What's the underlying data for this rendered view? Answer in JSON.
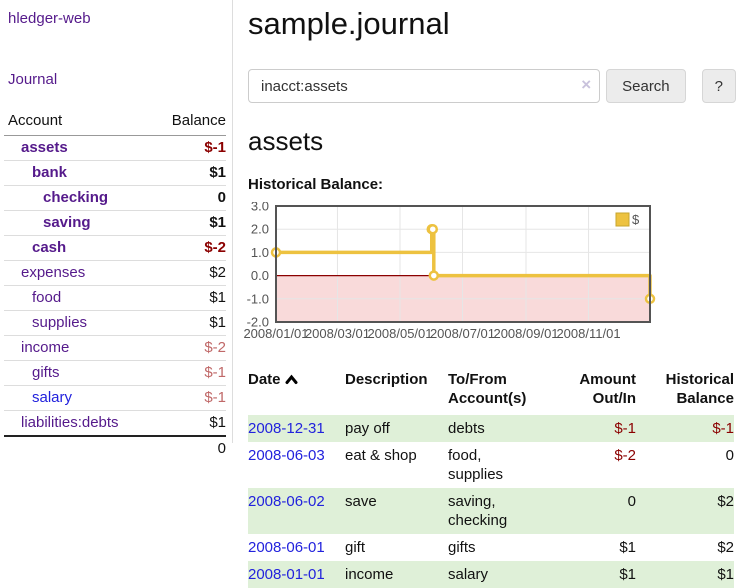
{
  "sidebar": {
    "brand": "hledger-web",
    "journal_link": "Journal",
    "accounts_table": {
      "headers": {
        "account": "Account",
        "balance": "Balance"
      },
      "rows": [
        {
          "name": "assets",
          "balance": "$-1",
          "level": 1,
          "bold": true,
          "blue_link": false
        },
        {
          "name": "bank",
          "balance": "$1",
          "level": 2,
          "bold": true,
          "blue_link": false
        },
        {
          "name": "checking",
          "balance": "0",
          "level": 3,
          "bold": true,
          "blue_link": false
        },
        {
          "name": "saving",
          "balance": "$1",
          "level": 3,
          "bold": true,
          "blue_link": false
        },
        {
          "name": "cash",
          "balance": "$-2",
          "level": 2,
          "bold": true,
          "blue_link": false
        },
        {
          "name": "expenses",
          "balance": "$2",
          "level": 1,
          "bold": false,
          "blue_link": false
        },
        {
          "name": "food",
          "balance": "$1",
          "level": 2,
          "bold": false,
          "blue_link": false
        },
        {
          "name": "supplies",
          "balance": "$1",
          "level": 2,
          "bold": false,
          "blue_link": false
        },
        {
          "name": "income",
          "balance": "$-2",
          "level": 1,
          "bold": false,
          "blue_link": false
        },
        {
          "name": "gifts",
          "balance": "$-1",
          "level": 2,
          "bold": false,
          "blue_link": false
        },
        {
          "name": "salary",
          "balance": "$-1",
          "level": 2,
          "bold": false,
          "blue_link": true
        },
        {
          "name": "liabilities:debts",
          "balance": "$1",
          "level": 1,
          "bold": false,
          "blue_link": false
        }
      ],
      "total": "0"
    }
  },
  "header": {
    "title": "sample.journal",
    "search": {
      "value": "inacct:assets",
      "clear_icon": "×",
      "search_button": "Search",
      "help_button": "?"
    }
  },
  "account_page": {
    "title": "assets",
    "chart_heading": "Historical Balance:"
  },
  "chart_data": {
    "type": "line",
    "step": true,
    "title": "Historical Balance",
    "series": [
      {
        "name": "$",
        "color": "#EDC240",
        "points": [
          [
            "2008-01-01",
            1
          ],
          [
            "2008-06-01",
            2
          ],
          [
            "2008-06-02",
            2
          ],
          [
            "2008-06-03",
            0
          ],
          [
            "2008-12-31",
            -1
          ]
        ]
      }
    ],
    "x_ticks": [
      "2008/01/01",
      "2008/03/01",
      "2008/05/01",
      "2008/07/01",
      "2008/09/01",
      "2008/11/01"
    ],
    "y_ticks": [
      "3.0",
      "2.0",
      "1.0",
      "0.0",
      "-1.0",
      "-2.0"
    ],
    "y_tick_values": [
      3,
      2,
      1,
      0,
      -1,
      -2
    ],
    "xlim": [
      "2008-01-01",
      "2008-12-31"
    ],
    "ylim": [
      -2,
      3
    ],
    "grid": true,
    "legend": {
      "position": "top-right",
      "entries": [
        {
          "label": "$",
          "color": "#EDC240"
        }
      ]
    },
    "colors": {
      "negative_region_fill": "#f9dada",
      "zero_line": "#8b0000",
      "grid": "#e6e6e6",
      "border": "#545454",
      "tick_text": "#545454"
    }
  },
  "register": {
    "headers": {
      "date": "Date",
      "description": "Description",
      "accounts": "To/From Account(s)",
      "amount": "Amount Out/In",
      "balance": "Historical Balance"
    },
    "rows": [
      {
        "date": "2008-12-31",
        "description": "pay off",
        "accounts": "debts",
        "amount": "$-1",
        "balance": "$-1"
      },
      {
        "date": "2008-06-03",
        "description": "eat & shop",
        "accounts": "food, supplies",
        "amount": "$-2",
        "balance": "0"
      },
      {
        "date": "2008-06-02",
        "description": "save",
        "accounts": "saving, checking",
        "amount": "0",
        "balance": "$2"
      },
      {
        "date": "2008-06-01",
        "description": "gift",
        "accounts": "gifts",
        "amount": "$1",
        "balance": "$2"
      },
      {
        "date": "2008-01-01",
        "description": "income",
        "accounts": "salary",
        "amount": "$1",
        "balance": "$1"
      }
    ]
  },
  "colors": {
    "purple_link": "#551A8B",
    "blue_link": "#2222dd",
    "negative_strong": "#8b0000",
    "negative_soft": "#c06868",
    "row_stripe_green": "#dff0d8"
  }
}
